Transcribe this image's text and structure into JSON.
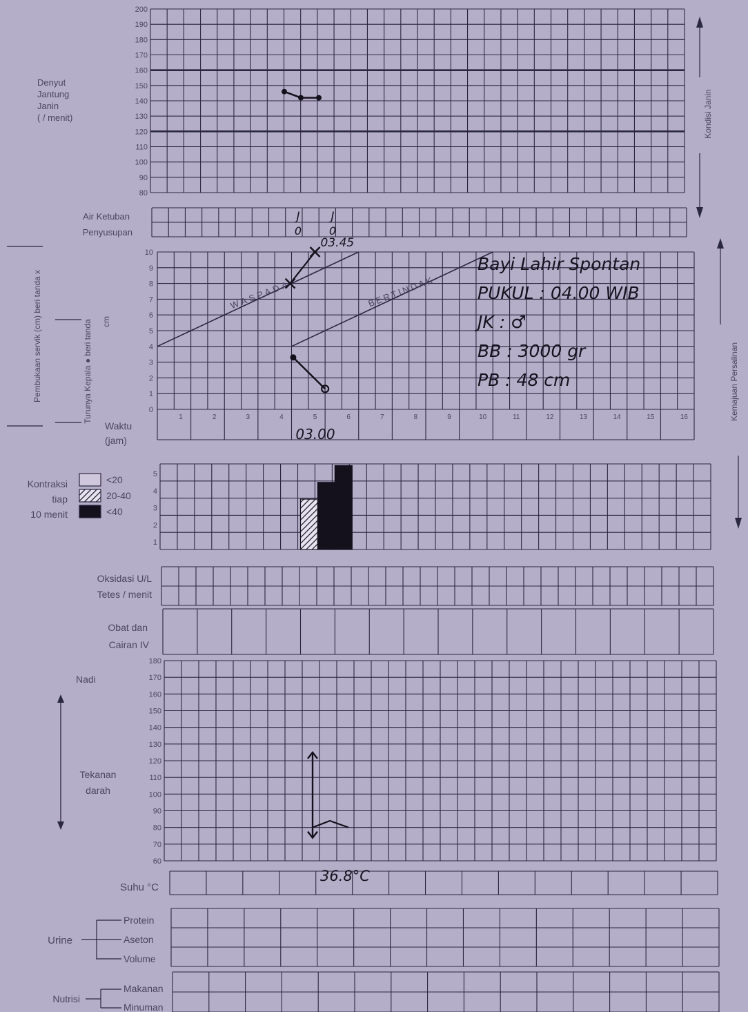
{
  "fhr": {
    "label_lines": [
      "Denyut",
      "Jantung",
      "Janin",
      "(     / menit)"
    ],
    "ticks": [
      "200",
      "190",
      "180",
      "170",
      "160",
      "150",
      "140",
      "130",
      "120",
      "110",
      "100",
      "90",
      "80"
    ],
    "readings": [
      146,
      142,
      142
    ]
  },
  "fluid": {
    "air_ketuban_label": "Air Ketuban",
    "penyusupan_label": "Penyusupan",
    "air_ketuban_values": [
      "J",
      "J"
    ],
    "penyusupan_values": [
      "0",
      "0"
    ]
  },
  "cervix": {
    "vertical_label": "Pembukaan servik (cm) beri tanda x",
    "descent_label_1": "Turunya Kepala ● beri tanda",
    "descent_label_2": "cm",
    "y_ticks": [
      "10",
      "9",
      "8",
      "7",
      "6",
      "5",
      "4",
      "3",
      "2",
      "1",
      "0"
    ],
    "hours": [
      "1",
      "2",
      "3",
      "4",
      "5",
      "6",
      "7",
      "8",
      "9",
      "10",
      "11",
      "12",
      "13",
      "14",
      "15",
      "16"
    ],
    "waspada": "WASPADA",
    "bertindak": "BERTINDAK",
    "dilation_points_cm": [
      8,
      10
    ],
    "dilation_time_label": "03.45",
    "descent_points": [
      3.3,
      1.3
    ]
  },
  "time": {
    "label_1": "Waktu",
    "label_2": "(jam)",
    "entry": "03.00"
  },
  "birth_notes": [
    "Bayi Lahir Spontan",
    "PUKUL : 04.00 WIB",
    "JK   : ♂",
    "BB   : 3000 gr",
    "PB   : 48 cm"
  ],
  "contractions": {
    "label_lines": [
      "Kontraksi",
      "tiap",
      "10 menit"
    ],
    "legend": [
      "<20",
      "20-40",
      "<40"
    ],
    "y_ticks": [
      "5",
      "4",
      "3",
      "2",
      "1"
    ],
    "bars": [
      {
        "count": 3,
        "type": "20-40"
      },
      {
        "count": 4,
        "type": "<40"
      },
      {
        "count": 5,
        "type": "<40"
      }
    ]
  },
  "oksitosin": {
    "label_1": "Oksidasi U/L",
    "label_2": "Tetes / menit"
  },
  "obat": {
    "label_1": "Obat dan",
    "label_2": "Cairan IV"
  },
  "vitals": {
    "nadi_label": "Nadi",
    "td_label_1": "Tekanan",
    "td_label_2": "darah",
    "ticks": [
      "180",
      "170",
      "160",
      "150",
      "140",
      "130",
      "120",
      "110",
      "100",
      "90",
      "80",
      "70",
      "60"
    ],
    "bp_systolic": 125,
    "bp_diastolic": 80,
    "pulse": [
      80,
      84,
      80
    ]
  },
  "suhu": {
    "label": "Suhu °C",
    "value": "36.8°C"
  },
  "urine": {
    "label": "Urine",
    "rows": [
      "Protein",
      "Aseton",
      "Volume"
    ]
  },
  "nutrisi": {
    "label": "Nutrisi",
    "rows": [
      "Makanan",
      "Minuman"
    ]
  },
  "side": {
    "kondisi_janin": "Kondisi Janin",
    "kemajuan": "Kemajuan Persalinan"
  }
}
